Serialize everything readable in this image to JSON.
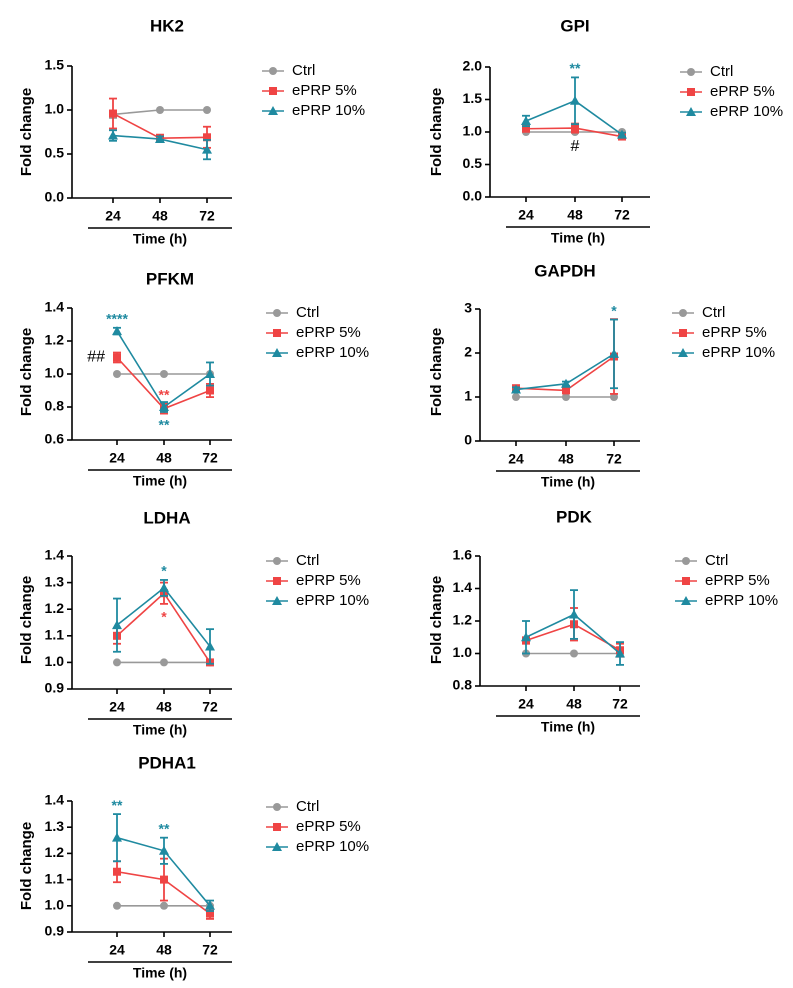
{
  "figure": {
    "colors": {
      "ctrl": "#999999",
      "eprp5": "#ef4444",
      "eprp10": "#1f8aa0",
      "axis": "#000000"
    }
  },
  "chart_data": [
    {
      "type": "line",
      "title": "HK2",
      "xlabel": "Time (h)",
      "ylabel": "Fold change",
      "categories": [
        "24",
        "48",
        "72"
      ],
      "ylim": [
        0,
        1.5
      ],
      "yticks": [
        "0.0",
        "0.5",
        "1.0",
        "1.5"
      ],
      "legend": [
        "Ctrl",
        "ePRP 5%",
        "ePRP 10%"
      ],
      "series": [
        {
          "name": "Ctrl",
          "values": [
            0.95,
            1.0,
            1.0
          ],
          "errors": [
            0.04,
            0,
            0
          ]
        },
        {
          "name": "ePRP 5%",
          "values": [
            0.96,
            0.68,
            0.69
          ],
          "errors": [
            0.17,
            0.04,
            0.12
          ]
        },
        {
          "name": "ePRP 10%",
          "values": [
            0.71,
            0.67,
            0.55
          ],
          "errors": [
            0.06,
            0.03,
            0.11
          ]
        }
      ],
      "annotations": []
    },
    {
      "type": "line",
      "title": "GPI",
      "xlabel": "Time (h)",
      "ylabel": "Fold change",
      "categories": [
        "24",
        "48",
        "72"
      ],
      "ylim": [
        0,
        2.0
      ],
      "yticks": [
        "0.0",
        "0.5",
        "1.0",
        "1.5",
        "2.0"
      ],
      "legend": [
        "Ctrl",
        "ePRP 5%",
        "ePRP 10%"
      ],
      "series": [
        {
          "name": "Ctrl",
          "values": [
            1.0,
            1.0,
            1.0
          ],
          "errors": [
            0,
            0,
            0
          ]
        },
        {
          "name": "ePRP 5%",
          "values": [
            1.05,
            1.06,
            0.93
          ],
          "errors": [
            0.04,
            0.07,
            0.03
          ]
        },
        {
          "name": "ePRP 10%",
          "values": [
            1.17,
            1.48,
            0.96
          ],
          "errors": [
            0.08,
            0.36,
            0.03
          ]
        }
      ],
      "annotations": [
        {
          "text": "**",
          "series": 2,
          "x": 1,
          "pos": "above"
        },
        {
          "text": "#",
          "series": 1,
          "x": 1,
          "pos": "below"
        }
      ]
    },
    {
      "type": "line",
      "title": "PFKM",
      "xlabel": "Time (h)",
      "ylabel": "Fold change",
      "categories": [
        "24",
        "48",
        "72"
      ],
      "ylim": [
        0.6,
        1.4
      ],
      "yticks": [
        "0.6",
        "0.8",
        "1.0",
        "1.2",
        "1.4"
      ],
      "legend": [
        "Ctrl",
        "ePRP 5%",
        "ePRP 10%"
      ],
      "series": [
        {
          "name": "Ctrl",
          "values": [
            1.0,
            1.0,
            1.0
          ],
          "errors": [
            0,
            0,
            0
          ]
        },
        {
          "name": "ePRP 5%",
          "values": [
            1.1,
            0.79,
            0.9
          ],
          "errors": [
            0.03,
            0.03,
            0.04
          ]
        },
        {
          "name": "ePRP 10%",
          "values": [
            1.26,
            0.8,
            1.0
          ],
          "errors": [
            0.02,
            0.03,
            0.07
          ]
        }
      ],
      "annotations": [
        {
          "text": "****",
          "series": 2,
          "x": 0,
          "pos": "above"
        },
        {
          "text": "##",
          "series": 1,
          "x": 0,
          "pos": "left"
        },
        {
          "text": "**",
          "series": 1,
          "x": 1,
          "pos": "above",
          "color": "eprp5"
        },
        {
          "text": "**",
          "series": 2,
          "x": 1,
          "pos": "below"
        }
      ]
    },
    {
      "type": "line",
      "title": "GAPDH",
      "xlabel": "Time (h)",
      "ylabel": "Fold change",
      "categories": [
        "24",
        "48",
        "72"
      ],
      "ylim": [
        0,
        3
      ],
      "yticks": [
        "0",
        "1",
        "2",
        "3"
      ],
      "legend": [
        "Ctrl",
        "ePRP 5%",
        "ePRP 10%"
      ],
      "series": [
        {
          "name": "Ctrl",
          "values": [
            1.0,
            1.0,
            1.0
          ],
          "errors": [
            0,
            0,
            0
          ]
        },
        {
          "name": "ePRP 5%",
          "values": [
            1.2,
            1.15,
            1.92
          ],
          "errors": [
            0.05,
            0.06,
            0.85
          ]
        },
        {
          "name": "ePRP 10%",
          "values": [
            1.17,
            1.3,
            1.98
          ],
          "errors": [
            0.05,
            0.05,
            0.78
          ]
        }
      ],
      "annotations": [
        {
          "text": "*",
          "series": 2,
          "x": 2,
          "pos": "above"
        }
      ]
    },
    {
      "type": "line",
      "title": "LDHA",
      "xlabel": "Time (h)",
      "ylabel": "Fold change",
      "categories": [
        "24",
        "48",
        "72"
      ],
      "ylim": [
        0.9,
        1.4
      ],
      "yticks": [
        "0.9",
        "1.0",
        "1.1",
        "1.2",
        "1.3",
        "1.4"
      ],
      "legend": [
        "Ctrl",
        "ePRP 5%",
        "ePRP 10%"
      ],
      "series": [
        {
          "name": "Ctrl",
          "values": [
            1.0,
            1.0,
            1.0
          ],
          "errors": [
            0,
            0,
            0
          ]
        },
        {
          "name": "ePRP 5%",
          "values": [
            1.1,
            1.26,
            1.0
          ],
          "errors": [
            0.03,
            0.04,
            0.005
          ]
        },
        {
          "name": "ePRP 10%",
          "values": [
            1.14,
            1.28,
            1.06
          ],
          "errors": [
            0.1,
            0.03,
            0.065
          ]
        }
      ],
      "annotations": [
        {
          "text": "*",
          "series": 2,
          "x": 1,
          "pos": "above"
        },
        {
          "text": "*",
          "series": 1,
          "x": 1,
          "pos": "below",
          "color": "eprp5"
        }
      ]
    },
    {
      "type": "line",
      "title": "PDK",
      "xlabel": "Time (h)",
      "ylabel": "Fold change",
      "categories": [
        "24",
        "48",
        "72"
      ],
      "ylim": [
        0.8,
        1.6
      ],
      "yticks": [
        "0.8",
        "1.0",
        "1.2",
        "1.4",
        "1.6"
      ],
      "legend": [
        "Ctrl",
        "ePRP 5%",
        "ePRP 10%"
      ],
      "series": [
        {
          "name": "Ctrl",
          "values": [
            1.0,
            1.0,
            1.0
          ],
          "errors": [
            0,
            0,
            0
          ]
        },
        {
          "name": "ePRP 5%",
          "values": [
            1.08,
            1.18,
            1.02
          ],
          "errors": [
            0.02,
            0.1,
            0.04
          ]
        },
        {
          "name": "ePRP 10%",
          "values": [
            1.1,
            1.24,
            1.0
          ],
          "errors": [
            0.1,
            0.15,
            0.07
          ]
        }
      ],
      "annotations": []
    },
    {
      "type": "line",
      "title": "PDHA1",
      "xlabel": "Time (h)",
      "ylabel": "Fold change",
      "categories": [
        "24",
        "48",
        "72"
      ],
      "ylim": [
        0.9,
        1.4
      ],
      "yticks": [
        "0.9",
        "1.0",
        "1.1",
        "1.2",
        "1.3",
        "1.4"
      ],
      "legend": [
        "Ctrl",
        "ePRP 5%",
        "ePRP 10%"
      ],
      "series": [
        {
          "name": "Ctrl",
          "values": [
            1.0,
            1.0,
            1.0
          ],
          "errors": [
            0,
            0,
            0
          ]
        },
        {
          "name": "ePRP 5%",
          "values": [
            1.13,
            1.1,
            0.97
          ],
          "errors": [
            0.04,
            0.08,
            0.02
          ]
        },
        {
          "name": "ePRP 10%",
          "values": [
            1.26,
            1.21,
            1.0
          ],
          "errors": [
            0.09,
            0.05,
            0.02
          ]
        }
      ],
      "annotations": [
        {
          "text": "**",
          "series": 2,
          "x": 0,
          "pos": "above"
        },
        {
          "text": "**",
          "series": 2,
          "x": 1,
          "pos": "above"
        }
      ]
    }
  ]
}
